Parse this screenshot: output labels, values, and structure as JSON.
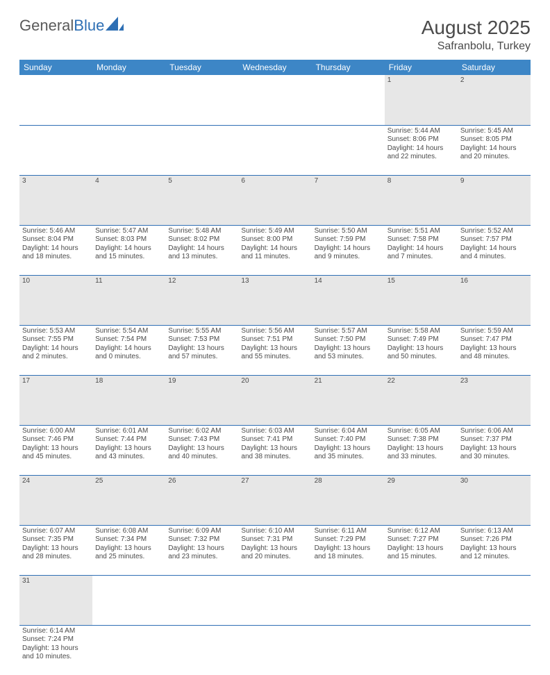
{
  "logo": {
    "text1": "General",
    "text2": "Blue"
  },
  "title": "August 2025",
  "location": "Safranbolu, Turkey",
  "colors": {
    "header_bg": "#3d86c6",
    "header_text": "#ffffff",
    "daynum_bg": "#e7e7e7",
    "row_border": "#2e6fb4",
    "text": "#4a4a4a",
    "logo_blue": "#2e6fb4"
  },
  "weekdays": [
    "Sunday",
    "Monday",
    "Tuesday",
    "Wednesday",
    "Thursday",
    "Friday",
    "Saturday"
  ],
  "weeks": [
    {
      "nums": [
        "",
        "",
        "",
        "",
        "",
        "1",
        "2"
      ],
      "cells": [
        null,
        null,
        null,
        null,
        null,
        {
          "sr": "Sunrise: 5:44 AM",
          "ss": "Sunset: 8:06 PM",
          "d1": "Daylight: 14 hours",
          "d2": "and 22 minutes."
        },
        {
          "sr": "Sunrise: 5:45 AM",
          "ss": "Sunset: 8:05 PM",
          "d1": "Daylight: 14 hours",
          "d2": "and 20 minutes."
        }
      ]
    },
    {
      "nums": [
        "3",
        "4",
        "5",
        "6",
        "7",
        "8",
        "9"
      ],
      "cells": [
        {
          "sr": "Sunrise: 5:46 AM",
          "ss": "Sunset: 8:04 PM",
          "d1": "Daylight: 14 hours",
          "d2": "and 18 minutes."
        },
        {
          "sr": "Sunrise: 5:47 AM",
          "ss": "Sunset: 8:03 PM",
          "d1": "Daylight: 14 hours",
          "d2": "and 15 minutes."
        },
        {
          "sr": "Sunrise: 5:48 AM",
          "ss": "Sunset: 8:02 PM",
          "d1": "Daylight: 14 hours",
          "d2": "and 13 minutes."
        },
        {
          "sr": "Sunrise: 5:49 AM",
          "ss": "Sunset: 8:00 PM",
          "d1": "Daylight: 14 hours",
          "d2": "and 11 minutes."
        },
        {
          "sr": "Sunrise: 5:50 AM",
          "ss": "Sunset: 7:59 PM",
          "d1": "Daylight: 14 hours",
          "d2": "and 9 minutes."
        },
        {
          "sr": "Sunrise: 5:51 AM",
          "ss": "Sunset: 7:58 PM",
          "d1": "Daylight: 14 hours",
          "d2": "and 7 minutes."
        },
        {
          "sr": "Sunrise: 5:52 AM",
          "ss": "Sunset: 7:57 PM",
          "d1": "Daylight: 14 hours",
          "d2": "and 4 minutes."
        }
      ]
    },
    {
      "nums": [
        "10",
        "11",
        "12",
        "13",
        "14",
        "15",
        "16"
      ],
      "cells": [
        {
          "sr": "Sunrise: 5:53 AM",
          "ss": "Sunset: 7:55 PM",
          "d1": "Daylight: 14 hours",
          "d2": "and 2 minutes."
        },
        {
          "sr": "Sunrise: 5:54 AM",
          "ss": "Sunset: 7:54 PM",
          "d1": "Daylight: 14 hours",
          "d2": "and 0 minutes."
        },
        {
          "sr": "Sunrise: 5:55 AM",
          "ss": "Sunset: 7:53 PM",
          "d1": "Daylight: 13 hours",
          "d2": "and 57 minutes."
        },
        {
          "sr": "Sunrise: 5:56 AM",
          "ss": "Sunset: 7:51 PM",
          "d1": "Daylight: 13 hours",
          "d2": "and 55 minutes."
        },
        {
          "sr": "Sunrise: 5:57 AM",
          "ss": "Sunset: 7:50 PM",
          "d1": "Daylight: 13 hours",
          "d2": "and 53 minutes."
        },
        {
          "sr": "Sunrise: 5:58 AM",
          "ss": "Sunset: 7:49 PM",
          "d1": "Daylight: 13 hours",
          "d2": "and 50 minutes."
        },
        {
          "sr": "Sunrise: 5:59 AM",
          "ss": "Sunset: 7:47 PM",
          "d1": "Daylight: 13 hours",
          "d2": "and 48 minutes."
        }
      ]
    },
    {
      "nums": [
        "17",
        "18",
        "19",
        "20",
        "21",
        "22",
        "23"
      ],
      "cells": [
        {
          "sr": "Sunrise: 6:00 AM",
          "ss": "Sunset: 7:46 PM",
          "d1": "Daylight: 13 hours",
          "d2": "and 45 minutes."
        },
        {
          "sr": "Sunrise: 6:01 AM",
          "ss": "Sunset: 7:44 PM",
          "d1": "Daylight: 13 hours",
          "d2": "and 43 minutes."
        },
        {
          "sr": "Sunrise: 6:02 AM",
          "ss": "Sunset: 7:43 PM",
          "d1": "Daylight: 13 hours",
          "d2": "and 40 minutes."
        },
        {
          "sr": "Sunrise: 6:03 AM",
          "ss": "Sunset: 7:41 PM",
          "d1": "Daylight: 13 hours",
          "d2": "and 38 minutes."
        },
        {
          "sr": "Sunrise: 6:04 AM",
          "ss": "Sunset: 7:40 PM",
          "d1": "Daylight: 13 hours",
          "d2": "and 35 minutes."
        },
        {
          "sr": "Sunrise: 6:05 AM",
          "ss": "Sunset: 7:38 PM",
          "d1": "Daylight: 13 hours",
          "d2": "and 33 minutes."
        },
        {
          "sr": "Sunrise: 6:06 AM",
          "ss": "Sunset: 7:37 PM",
          "d1": "Daylight: 13 hours",
          "d2": "and 30 minutes."
        }
      ]
    },
    {
      "nums": [
        "24",
        "25",
        "26",
        "27",
        "28",
        "29",
        "30"
      ],
      "cells": [
        {
          "sr": "Sunrise: 6:07 AM",
          "ss": "Sunset: 7:35 PM",
          "d1": "Daylight: 13 hours",
          "d2": "and 28 minutes."
        },
        {
          "sr": "Sunrise: 6:08 AM",
          "ss": "Sunset: 7:34 PM",
          "d1": "Daylight: 13 hours",
          "d2": "and 25 minutes."
        },
        {
          "sr": "Sunrise: 6:09 AM",
          "ss": "Sunset: 7:32 PM",
          "d1": "Daylight: 13 hours",
          "d2": "and 23 minutes."
        },
        {
          "sr": "Sunrise: 6:10 AM",
          "ss": "Sunset: 7:31 PM",
          "d1": "Daylight: 13 hours",
          "d2": "and 20 minutes."
        },
        {
          "sr": "Sunrise: 6:11 AM",
          "ss": "Sunset: 7:29 PM",
          "d1": "Daylight: 13 hours",
          "d2": "and 18 minutes."
        },
        {
          "sr": "Sunrise: 6:12 AM",
          "ss": "Sunset: 7:27 PM",
          "d1": "Daylight: 13 hours",
          "d2": "and 15 minutes."
        },
        {
          "sr": "Sunrise: 6:13 AM",
          "ss": "Sunset: 7:26 PM",
          "d1": "Daylight: 13 hours",
          "d2": "and 12 minutes."
        }
      ]
    },
    {
      "nums": [
        "31",
        "",
        "",
        "",
        "",
        "",
        ""
      ],
      "cells": [
        {
          "sr": "Sunrise: 6:14 AM",
          "ss": "Sunset: 7:24 PM",
          "d1": "Daylight: 13 hours",
          "d2": "and 10 minutes."
        },
        null,
        null,
        null,
        null,
        null,
        null
      ]
    }
  ]
}
